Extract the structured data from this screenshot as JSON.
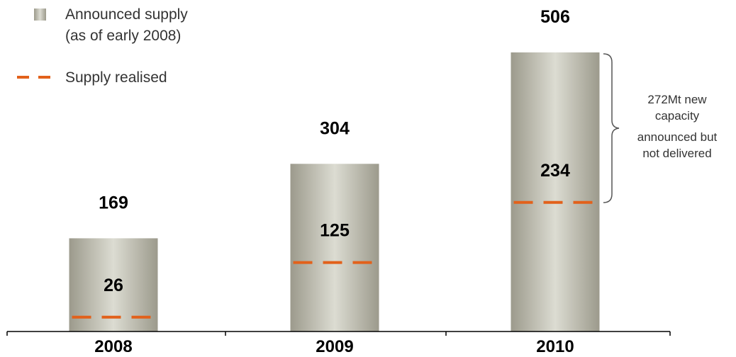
{
  "legend": {
    "announced_label_line1": "Announced supply",
    "announced_label_line2": "(as of early 2008)",
    "realised_label": "Supply realised"
  },
  "annotation": {
    "lines": [
      "272Mt new",
      "capacity",
      "announced but",
      "not delivered"
    ]
  },
  "colors": {
    "bar_dark": "#9c9a8c",
    "bar_light": "#dcdcd2",
    "realised_line": "#e2611b",
    "axis": "#000000",
    "text": "#000000",
    "annotation_text": "#333333"
  },
  "chart_data": {
    "type": "bar",
    "categories": [
      "2008",
      "2009",
      "2010"
    ],
    "series": [
      {
        "name": "Announced supply (as of early 2008)",
        "values": [
          169,
          304,
          506
        ]
      },
      {
        "name": "Supply realised",
        "values": [
          26,
          125,
          234
        ]
      }
    ],
    "legend_position": "top-left",
    "grid": false,
    "ylim": [
      0,
      530
    ],
    "annotation": "272Mt new capacity announced but not delivered"
  }
}
